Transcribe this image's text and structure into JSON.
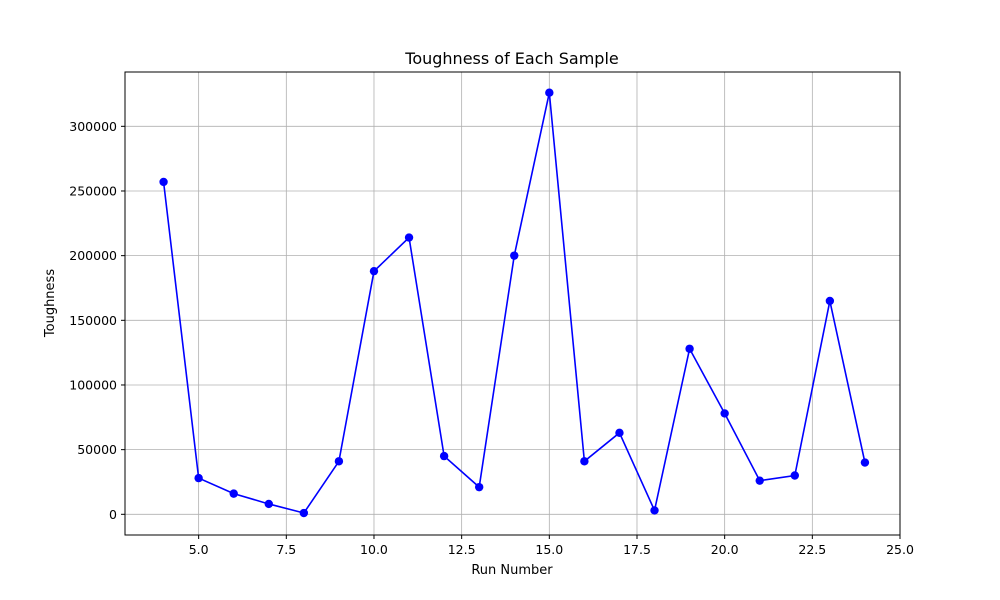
{
  "chart_data": {
    "type": "line",
    "title": "Toughness of Each Sample",
    "xlabel": "Run Number",
    "ylabel": "Toughness",
    "xlim": [
      2.9,
      25.0
    ],
    "ylim": [
      -16000,
      342000
    ],
    "xticks": [
      5.0,
      7.5,
      10.0,
      12.5,
      15.0,
      17.5,
      20.0,
      22.5,
      25.0
    ],
    "xtick_labels": [
      "5.0",
      "7.5",
      "10.0",
      "12.5",
      "15.0",
      "17.5",
      "20.0",
      "22.5",
      "25.0"
    ],
    "yticks": [
      0,
      50000,
      100000,
      150000,
      200000,
      250000,
      300000
    ],
    "ytick_labels": [
      "0",
      "50000",
      "100000",
      "150000",
      "200000",
      "250000",
      "300000"
    ],
    "grid": true,
    "color": "#0000ff",
    "marker": "circle",
    "series": [
      {
        "x": [
          4,
          5,
          6,
          7,
          8,
          9,
          10,
          11,
          12,
          13,
          14,
          15,
          16,
          17,
          18,
          19,
          20,
          21,
          22,
          23,
          24
        ],
        "y": [
          257000,
          28000,
          16000,
          8000,
          1000,
          41000,
          188000,
          214000,
          45000,
          21000,
          200000,
          326000,
          41000,
          63000,
          3000,
          128000,
          78000,
          26000,
          30000,
          165000,
          40000
        ]
      }
    ]
  }
}
